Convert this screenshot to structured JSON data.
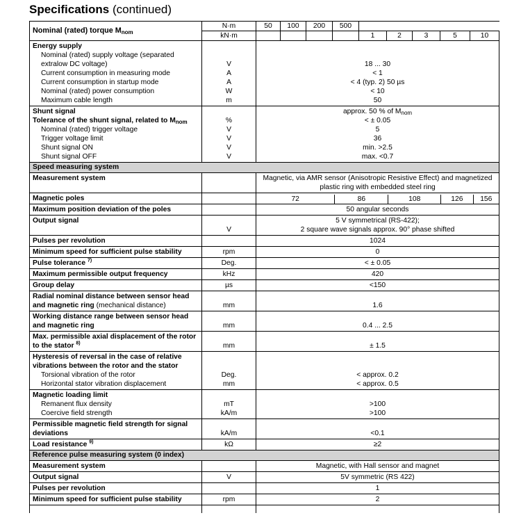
{
  "title": {
    "main": "Specifications",
    "suffix": "(continued)"
  },
  "header": {
    "label": "Nominal (rated) torque M",
    "label_sub": "nom",
    "unit_nm": "N·m",
    "unit_knm": "kN·m",
    "nm_values": [
      "50",
      "100",
      "200",
      "500"
    ],
    "knm_values": [
      "1",
      "2",
      "3",
      "5",
      "10"
    ]
  },
  "rows": [
    {
      "label": "Energy supply",
      "bold": true,
      "top": true
    },
    {
      "label": "Nominal (rated) supply voltage (separated extralow DC voltage)",
      "unit": "V",
      "value": "18 ... 30",
      "indent": true
    },
    {
      "label": "Current consumption in measuring mode",
      "unit": "A",
      "value": "< 1",
      "indent": true
    },
    {
      "label": "Current consumption in startup mode",
      "unit": "A",
      "value": "< 4 (typ. 2) 50 µs",
      "indent": true
    },
    {
      "label": "Nominal (rated) power consumption",
      "unit": "W",
      "value": "< 10",
      "indent": true
    },
    {
      "label": "Maximum cable length",
      "unit": "m",
      "value": "50",
      "indent": true
    },
    {
      "label": "Shunt signal",
      "bold": true,
      "top": true,
      "value": "approx. 50 % of M",
      "value_sub": "nom"
    },
    {
      "label": "Tolerance of the shunt signal, related to M",
      "label_sub": "nom",
      "bold": true,
      "unit": "%",
      "value": "< ± 0.05"
    },
    {
      "label": "Nominal (rated) trigger voltage",
      "unit": "V",
      "value": "5",
      "indent": true
    },
    {
      "label": "Trigger voltage limit",
      "unit": "V",
      "value": "36",
      "indent": true
    },
    {
      "label": "Shunt signal ON",
      "unit": "V",
      "value": "min. >2.5",
      "indent": true
    },
    {
      "label": "Shunt signal OFF",
      "unit": "V",
      "value": "max. <0.7",
      "indent": true
    },
    {
      "section": "Speed measuring system"
    },
    {
      "label": "Measurement system",
      "bold": true,
      "top": true,
      "value": "Magnetic, via AMR sensor (Anisotropic Resistive Effect) and magnetized plastic ring with embedded steel ring"
    },
    {
      "label": "Magnetic poles",
      "bold": true,
      "top": true,
      "poles": [
        "72",
        "86",
        "108",
        "126",
        "156"
      ]
    },
    {
      "label": "Maximum position deviation of the poles",
      "bold": true,
      "top": true,
      "value": "50 angular seconds"
    },
    {
      "label": "Output signal",
      "bold": true,
      "top": true,
      "unit": "V",
      "value": "5 V symmetrical (RS-422);",
      "value2": "2 square wave signals approx. 90° phase shifted"
    },
    {
      "label": "Pulses per revolution",
      "bold": true,
      "top": true,
      "value": "1024"
    },
    {
      "label": "Minimum speed for sufficient pulse stability",
      "bold": true,
      "top": true,
      "unit": "rpm",
      "value": "0"
    },
    {
      "label": "Pulse tolerance",
      "label_sup": "7)",
      "bold": true,
      "top": true,
      "unit": "Deg.",
      "value": "< ± 0.05"
    },
    {
      "label": "Maximum permissible output frequency",
      "bold": true,
      "top": true,
      "unit": "kHz",
      "value": "420"
    },
    {
      "label": "Group delay",
      "bold": true,
      "top": true,
      "unit": "µs",
      "value": "<150"
    },
    {
      "label": "Radial nominal distance between sensor head and magnetic ring",
      "label_extra": "(mechanical distance)",
      "bold": true,
      "top": true,
      "unit": "mm",
      "value": "1.6"
    },
    {
      "label": "Working distance range between sensor head and magnetic ring",
      "bold": true,
      "top": true,
      "unit": "mm",
      "value": "0.4 ... 2.5"
    },
    {
      "label": "Max. permissible axial displacement of the rotor to the stator",
      "label_sup": "8)",
      "bold": true,
      "top": true,
      "unit": "mm",
      "value": "± 1.5"
    },
    {
      "label": "Hysteresis of reversal in the case of relative vibrations between the rotor and the stator",
      "bold": true,
      "top": true
    },
    {
      "label": "Torsional vibration of the rotor",
      "unit": "Deg.",
      "value": "< approx. 0.2",
      "indent": true
    },
    {
      "label": "Horizontal stator vibration displacement",
      "unit": "mm",
      "value": "< approx. 0.5",
      "indent": true
    },
    {
      "label": "Magnetic loading limit",
      "bold": true,
      "top": true
    },
    {
      "label": "Remanent flux density",
      "unit": "mT",
      "value": ">100",
      "indent": true
    },
    {
      "label": "Coercive field strength",
      "unit": "kA/m",
      "value": ">100",
      "indent": true
    },
    {
      "label": "Permissible magnetic field strength for signal deviations",
      "bold": true,
      "top": true,
      "unit": "kA/m",
      "value": "<0.1"
    },
    {
      "label": "Load resistance",
      "label_sup": "9)",
      "bold": true,
      "top": true,
      "unit": "kΩ",
      "value": "≥2"
    },
    {
      "section": "Reference pulse measuring system (0 index)"
    },
    {
      "label": "Measurement system",
      "bold": true,
      "top": true,
      "value": "Magnetic, with Hall sensor and magnet"
    },
    {
      "label": "Output signal",
      "bold": true,
      "top": true,
      "unit": "V",
      "value": "5V symmetric (RS 422)"
    },
    {
      "label": "Pulses per revolution",
      "bold": true,
      "top": true,
      "value": "1"
    },
    {
      "label": "Minimum speed for sufficient pulse stability",
      "bold": true,
      "top": true,
      "unit": "rpm",
      "value": "2"
    }
  ]
}
